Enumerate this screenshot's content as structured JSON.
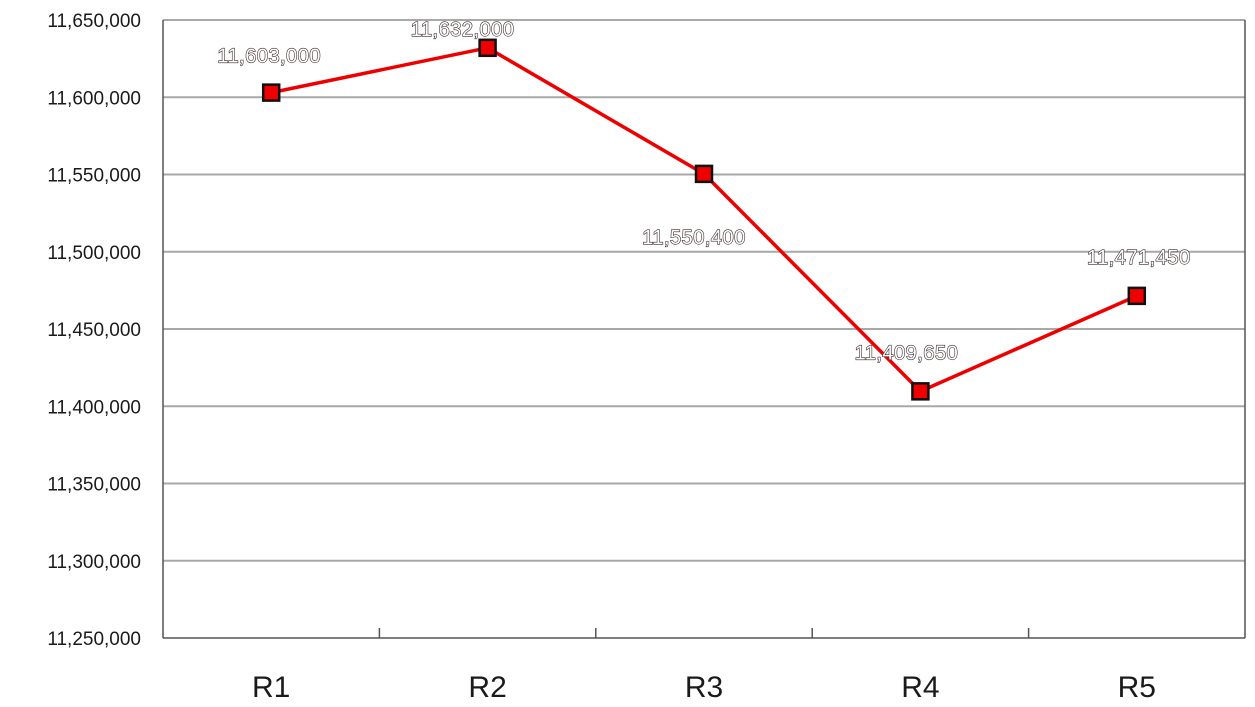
{
  "chart_data": {
    "type": "line",
    "categories": [
      "R1",
      "R2",
      "R3",
      "R4",
      "R5"
    ],
    "series": [
      {
        "values": [
          11603000,
          11632000,
          11550400,
          11409650,
          11471450
        ]
      }
    ],
    "data_labels": [
      "11,603,000",
      "11,632,000",
      "11,550,400",
      "11,409,650",
      "11,471,450"
    ],
    "yticks": [
      "11,250,000",
      "11,300,000",
      "11,350,000",
      "11,400,000",
      "11,450,000",
      "11,500,000",
      "11,550,000",
      "11,600,000",
      "11,650,000"
    ],
    "ylim": [
      11250000,
      11650000
    ],
    "ystep": 50000,
    "title": "",
    "xlabel": "",
    "ylabel": "",
    "grid": true,
    "legend": "none",
    "colors": {
      "line": "#ee0000",
      "marker_fill": "#ee0000",
      "marker_edge": "#111111",
      "grid": "#a8a8a8"
    }
  }
}
